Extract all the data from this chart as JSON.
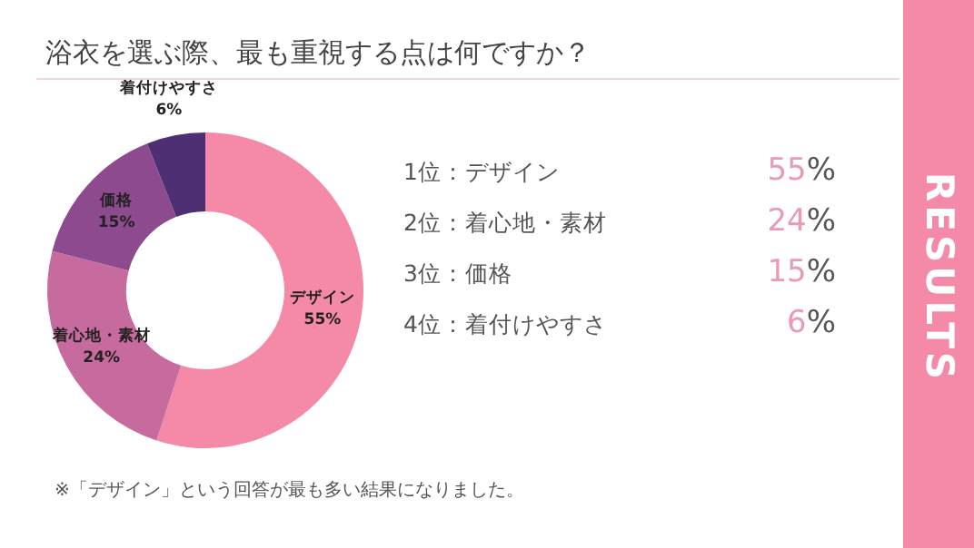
{
  "chart_data": {
    "type": "donut",
    "title": "浴衣を選ぶ際、最も重視する点は何ですか？",
    "categories": [
      "デザイン",
      "着心地・素材",
      "価格",
      "着付けやすさ"
    ],
    "values": [
      55,
      24,
      15,
      6
    ],
    "colors": [
      "#f48aa8",
      "#c76a9e",
      "#8e4a8e",
      "#4e2f74"
    ],
    "value_labels": [
      "55%",
      "24%",
      "15%",
      "6%"
    ],
    "legend": false,
    "annotations": [
      "1位：デザイン",
      "2位：着心地・素材",
      "3位：価格",
      "4位：着付けやすさ",
      "※「デザイン」という回答が最も多い結果になりました。",
      "RESULTS"
    ]
  }
}
